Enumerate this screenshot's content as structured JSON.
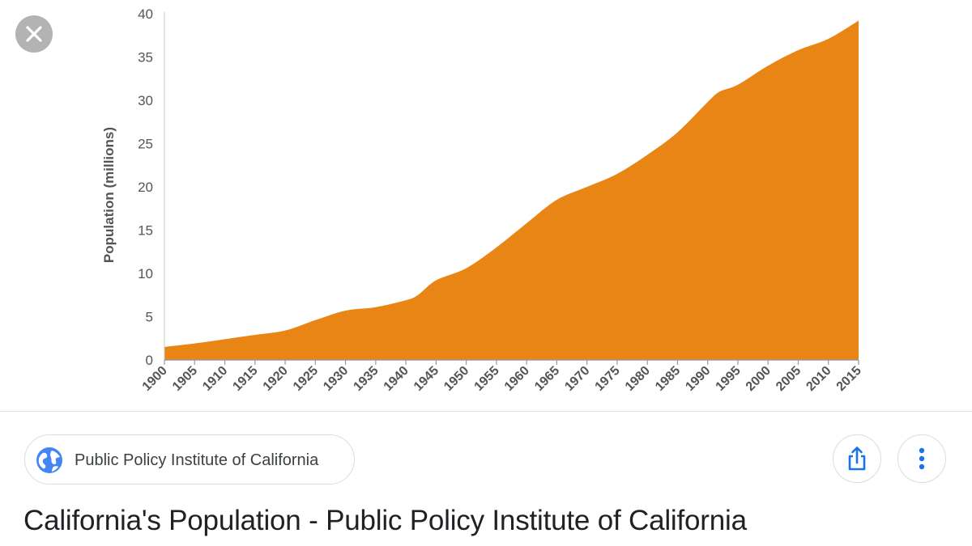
{
  "viewer": {
    "close_icon": "close-icon"
  },
  "chart_data": {
    "type": "area",
    "ylabel": "Population (millions)",
    "xlabel": "",
    "title": "",
    "ylim": [
      0,
      40
    ],
    "yticks": [
      0,
      5,
      10,
      15,
      20,
      25,
      30,
      35,
      40
    ],
    "xticks": [
      1900,
      1905,
      1910,
      1915,
      1920,
      1925,
      1930,
      1935,
      1940,
      1945,
      1950,
      1955,
      1960,
      1965,
      1970,
      1975,
      1980,
      1985,
      1990,
      1995,
      2000,
      2005,
      2010,
      2015
    ],
    "grid": false,
    "fill_color": "#E88514",
    "x": [
      1900,
      1905,
      1910,
      1915,
      1920,
      1925,
      1930,
      1935,
      1940,
      1942,
      1945,
      1950,
      1955,
      1960,
      1965,
      1970,
      1975,
      1980,
      1985,
      1990,
      1992,
      1995,
      2000,
      2005,
      2010,
      2015
    ],
    "values": [
      1.5,
      1.9,
      2.4,
      2.9,
      3.4,
      4.6,
      5.7,
      6.1,
      6.9,
      7.5,
      9.2,
      10.6,
      13.0,
      15.8,
      18.5,
      20.0,
      21.5,
      23.7,
      26.3,
      29.8,
      31.0,
      31.8,
      34.0,
      35.8,
      37.1,
      39.2
    ]
  },
  "source": {
    "name": "Public Policy Institute of California",
    "icon": "globe-icon"
  },
  "actions": {
    "share_icon": "share-icon",
    "more_icon": "more-vert-icon"
  },
  "result": {
    "title": "California's Population - Public Policy Institute of California"
  },
  "colors": {
    "accent": "#1a73e8",
    "area": "#E88514"
  }
}
